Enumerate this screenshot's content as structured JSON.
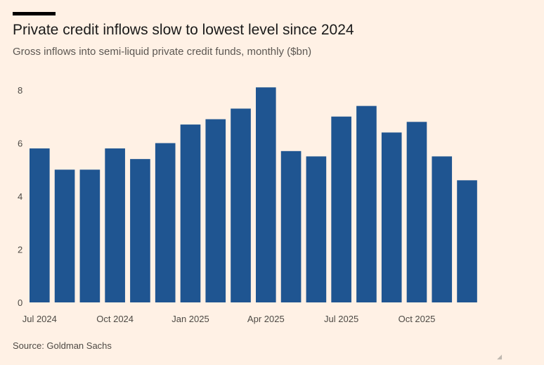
{
  "title": "Private credit inflows slow to lowest level since 2024",
  "subtitle": "Gross inflows into semi-liquid private credit funds, monthly ($bn)",
  "source": "Source: Goldman Sachs",
  "colors": {
    "background": "#FFF1E5",
    "bar": "#1F5591",
    "title": "#1a1a1a"
  },
  "chart_data": {
    "type": "bar",
    "title": "Private credit inflows slow to lowest level since 2024",
    "xlabel": "",
    "ylabel": "$bn",
    "ylim": [
      0,
      8
    ],
    "yticks": [
      0,
      2,
      4,
      6,
      8
    ],
    "grid": false,
    "categories": [
      "Jul 2024",
      "Aug 2024",
      "Sep 2024",
      "Oct 2024",
      "Nov 2024",
      "Dec 2024",
      "Jan 2025",
      "Feb 2025",
      "Mar 2025",
      "Apr 2025",
      "May 2025",
      "Jun 2025",
      "Jul 2025",
      "Aug 2025",
      "Sep 2025",
      "Oct 2025",
      "Nov 2025",
      "Dec 2025"
    ],
    "values": [
      5.8,
      5.0,
      5.0,
      5.8,
      5.4,
      6.0,
      6.7,
      6.9,
      7.3,
      8.1,
      5.7,
      5.5,
      7.0,
      7.4,
      6.4,
      6.8,
      5.5,
      4.6
    ],
    "xtick_labels": [
      {
        "index": 0,
        "label": "Jul 2024"
      },
      {
        "index": 3,
        "label": "Oct 2024"
      },
      {
        "index": 6,
        "label": "Jan 2025"
      },
      {
        "index": 9,
        "label": "Apr 2025"
      },
      {
        "index": 12,
        "label": "Jul 2025"
      },
      {
        "index": 15,
        "label": "Oct 2025"
      }
    ]
  }
}
